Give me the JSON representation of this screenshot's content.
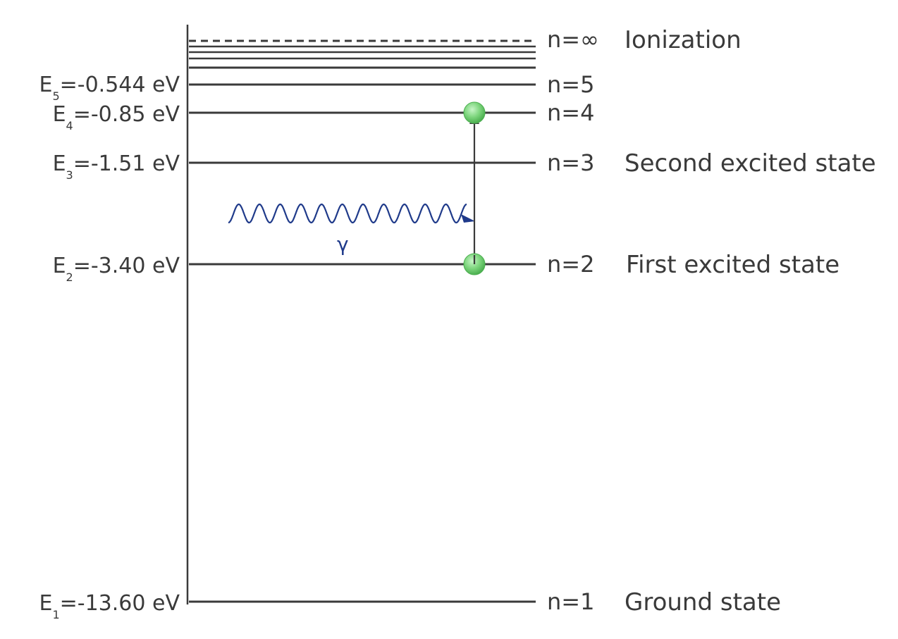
{
  "levels": [
    {
      "n": "1",
      "n_label": "n=1",
      "energy_symbol": "E",
      "energy_sub": "1",
      "energy_value": "=-13.60 eV",
      "state": "Ground state"
    },
    {
      "n": "2",
      "n_label": "n=2",
      "energy_symbol": "E",
      "energy_sub": "2",
      "energy_value": "=-3.40 eV",
      "state": "First excited state"
    },
    {
      "n": "3",
      "n_label": "n=3",
      "energy_symbol": "E",
      "energy_sub": "3",
      "energy_value": "=-1.51 eV",
      "state": "Second excited state"
    },
    {
      "n": "4",
      "n_label": "n=4",
      "energy_symbol": "E",
      "energy_sub": "4",
      "energy_value": "=-0.85 eV",
      "state": ""
    },
    {
      "n": "5",
      "n_label": "n=5",
      "energy_symbol": "E",
      "energy_sub": "5",
      "energy_value": "=-0.544 eV",
      "state": ""
    },
    {
      "n": "inf",
      "n_label": "n=∞",
      "state": "Ionization"
    }
  ],
  "photon": {
    "label": "γ",
    "color": "#1f3a8a"
  },
  "transition": {
    "from": "n=2",
    "to": "n=4"
  },
  "colors": {
    "line": "#3a3a3a",
    "electron": "#7ed67e",
    "electron_edge": "#4caf50",
    "photon": "#1f3a8a"
  }
}
